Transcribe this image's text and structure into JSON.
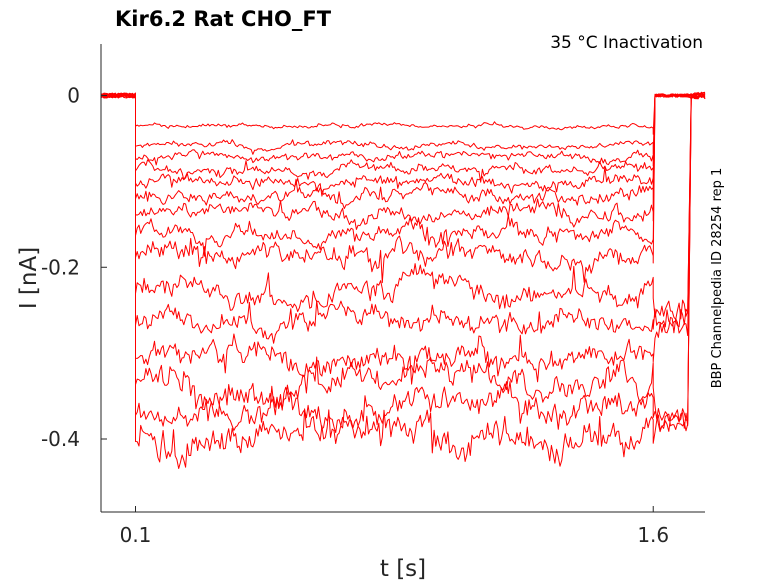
{
  "chart_data": {
    "type": "line",
    "title": "Kir6.2  Rat  CHO_FT",
    "condition": "35 °C  Inactivation",
    "side_label": "BBP Channelpedia ID 28254 rep 1",
    "xlabel": "t [s]",
    "ylabel": "I [nA]",
    "xlim": [
      0.0,
      1.75
    ],
    "ylim": [
      -0.485,
      0.06
    ],
    "x_ticks": [
      {
        "value": 0.1,
        "label": "0.1"
      },
      {
        "value": 1.6,
        "label": "1.6"
      }
    ],
    "y_ticks": [
      {
        "value": 0,
        "label": "0"
      },
      {
        "value": -0.2,
        "label": "-0.2"
      },
      {
        "value": -0.4,
        "label": "-0.4"
      }
    ],
    "grid": false,
    "trace_color": "#ff0000",
    "protocol": {
      "pre_step_start_s": 0.0,
      "step_start_s": 0.1,
      "step_end_s": 1.6,
      "post_step_end_s": 1.7
    },
    "series": [
      {
        "step_level_nA": -0.035,
        "post_step_nA": 0.0
      },
      {
        "step_level_nA": -0.058,
        "post_step_nA": 0.0
      },
      {
        "step_level_nA": -0.072,
        "post_step_nA": 0.0
      },
      {
        "step_level_nA": -0.086,
        "post_step_nA": 0.0
      },
      {
        "step_level_nA": -0.1,
        "post_step_nA": 0.0
      },
      {
        "step_level_nA": -0.118,
        "post_step_nA": 0.0
      },
      {
        "step_level_nA": -0.136,
        "post_step_nA": 0.0
      },
      {
        "step_level_nA": -0.16,
        "post_step_nA": 0.0
      },
      {
        "step_level_nA": -0.185,
        "post_step_nA": 0.0
      },
      {
        "step_level_nA": -0.226,
        "post_step_nA": -0.25
      },
      {
        "step_level_nA": -0.262,
        "post_step_nA": -0.26
      },
      {
        "step_level_nA": -0.3,
        "post_step_nA": -0.27
      },
      {
        "step_level_nA": -0.33,
        "post_step_nA": -0.37
      },
      {
        "step_level_nA": -0.365,
        "post_step_nA": -0.38
      },
      {
        "step_level_nA": -0.395,
        "post_step_nA": -0.38
      }
    ]
  }
}
